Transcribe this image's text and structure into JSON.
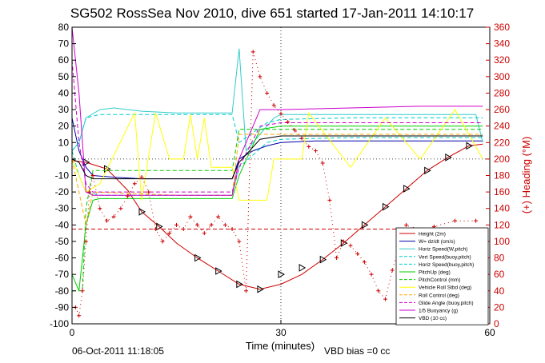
{
  "chart_data": {
    "type": "line",
    "title": "SG502 RossSea Nov 2010, dive 651 started 17-Jan-2011 14:10:17",
    "xlabel": "Time (minutes)",
    "ylabel_right": "(+) Heading (°M)",
    "xlim": [
      0,
      60
    ],
    "ylim": [
      -100,
      80
    ],
    "ylim_right": [
      0,
      360
    ],
    "x_ticks": [
      0,
      30,
      60
    ],
    "y_ticks": [
      -100,
      -90,
      -80,
      -70,
      -60,
      -50,
      -40,
      -30,
      -20,
      -10,
      0,
      10,
      20,
      30,
      40,
      50,
      60,
      70,
      80
    ],
    "y_ticks_right": [
      0,
      20,
      40,
      60,
      80,
      100,
      120,
      140,
      160,
      180,
      200,
      220,
      240,
      260,
      280,
      300,
      320,
      340,
      360
    ],
    "grid": "dotted at x=30 and y=0",
    "legend_position": "bottom-right",
    "footer_left": "06-Oct-2011 11:18:05",
    "footer_right": "VBD bias =0 cc",
    "colors": {
      "axis": "#000000",
      "right_axis": "#cc0000",
      "height": "#cc0000",
      "heading": "#cc0000",
      "w": "#0000aa",
      "horiz_w": "#33cccc",
      "vert_buoy": "#00cccc",
      "horiz_buoy": "#00cccc",
      "pitch": "#00cc00",
      "pitch_control": "#00cc00",
      "roll": "#ffff00",
      "roll_control": "#ffaa00",
      "glide": "#cc00cc",
      "buoyancy": "#cc00cc",
      "vbd": "#000000"
    },
    "series": [
      {
        "name": "Height (2m)",
        "color": "#cc0000",
        "style": "solid",
        "marker": "none",
        "x": [
          0,
          2,
          5,
          8,
          10,
          12.5,
          15,
          18,
          21,
          24,
          27,
          30,
          33,
          36,
          39,
          42,
          45,
          48,
          51,
          54,
          57,
          59
        ],
        "y": [
          -1,
          -2,
          -6,
          -19,
          -32,
          -41,
          -51,
          -60,
          -68,
          -76,
          -79,
          -76,
          -70,
          -61,
          -51,
          -40,
          -29,
          -18,
          -7,
          1,
          8,
          9
        ]
      },
      {
        "name": "",
        "color": "#000000",
        "style": "none",
        "marker": "triangle",
        "x": [
          2,
          5,
          10,
          12.5,
          18,
          21,
          24,
          27,
          30,
          33,
          36,
          39,
          42,
          45,
          48,
          51,
          54,
          57
        ],
        "y": [
          -2,
          -6,
          -32,
          -41,
          -60,
          -68,
          -76,
          -79,
          -70,
          -66,
          -61,
          -51,
          -40,
          -29,
          -18,
          -7,
          1,
          8
        ]
      },
      {
        "name": "W= dz/dt (cm/s)",
        "color": "#0000aa",
        "style": "solid",
        "marker": "none",
        "x": [
          0,
          1,
          2,
          3,
          6,
          10,
          15,
          20,
          23,
          24,
          26,
          28,
          30,
          35,
          40,
          45,
          50,
          55,
          57,
          58,
          59
        ],
        "y": [
          25,
          5,
          -5,
          -10,
          -11,
          -12,
          -12,
          -12,
          -12,
          0,
          5,
          8,
          10,
          11,
          11,
          11,
          11,
          11,
          11,
          11,
          11
        ]
      },
      {
        "name": "Horiz Speed(W,pitch)",
        "color": "#33cccc",
        "style": "solid",
        "marker": "none",
        "x": [
          0,
          1,
          2,
          4,
          6,
          10,
          15,
          20,
          23,
          24,
          25,
          27,
          29,
          30,
          35,
          40,
          45,
          50,
          55,
          58,
          59
        ],
        "y": [
          5,
          10,
          25,
          30,
          31,
          29,
          28,
          28,
          28,
          67,
          5,
          15,
          25,
          27,
          27,
          27,
          27,
          27,
          27,
          27,
          10
        ]
      },
      {
        "name": "Vert Speed(buoy,pitch)",
        "color": "#00cccc",
        "style": "dashed",
        "marker": "none",
        "x": [
          0,
          1,
          2,
          4,
          8,
          15,
          23,
          24,
          28,
          30,
          40,
          50,
          59
        ],
        "y": [
          5,
          -10,
          -20,
          -22,
          -22,
          -22,
          -22,
          -5,
          10,
          12,
          13,
          13,
          13
        ]
      },
      {
        "name": "Horiz Speed(buoy,pitch)",
        "color": "#00cccc",
        "style": "dashed",
        "marker": "none",
        "x": [
          0,
          1,
          2,
          4,
          8,
          15,
          23,
          24,
          28,
          30,
          40,
          50,
          59
        ],
        "y": [
          5,
          10,
          25,
          27,
          27,
          27,
          27,
          10,
          22,
          24,
          25,
          25,
          25
        ]
      },
      {
        "name": "PitchUp (deg)",
        "color": "#00cc00",
        "style": "solid",
        "marker": "none",
        "x": [
          0,
          1,
          2,
          3,
          4,
          8,
          15,
          23,
          24,
          27,
          30,
          40,
          50,
          59
        ],
        "y": [
          -70,
          -80,
          -40,
          -25,
          -24,
          -24,
          -24,
          -24,
          -10,
          18,
          20,
          20,
          20,
          20
        ]
      },
      {
        "name": "PitchControl (mm)",
        "color": "#00cc00",
        "style": "dashed",
        "marker": "none",
        "x": [
          0,
          1.5,
          2,
          3,
          15,
          23,
          24,
          26,
          30,
          40,
          50,
          59
        ],
        "y": [
          -80,
          -80,
          -30,
          -7,
          -7,
          -7,
          18,
          18,
          18,
          18,
          18,
          18
        ]
      },
      {
        "name": "Vehicle Roll Stbd (deg)",
        "color": "#ffff00",
        "style": "solid",
        "marker": "none",
        "x": [
          0,
          2,
          4,
          9,
          10,
          12,
          14,
          16,
          17,
          18,
          19,
          20,
          23,
          24,
          28,
          29,
          33,
          34,
          40,
          45,
          50,
          55,
          59
        ],
        "y": [
          0,
          -20,
          -15,
          28,
          -25,
          28,
          0,
          0,
          27,
          0,
          25,
          -5,
          -5,
          -25,
          -25,
          0,
          0,
          28,
          -5,
          25,
          0,
          30,
          0
        ]
      },
      {
        "name": "Roll Control (deg)",
        "color": "#ffaa00",
        "style": "dashed",
        "marker": "none",
        "x": [
          0,
          2,
          3,
          15,
          23,
          24,
          30,
          40,
          50,
          59
        ],
        "y": [
          0,
          -40,
          -20,
          -22,
          -22,
          15,
          15,
          15,
          15,
          15
        ]
      },
      {
        "name": "Glide Angle (buoy,pitch)",
        "color": "#cc00cc",
        "style": "dashed",
        "marker": "none",
        "x": [
          0,
          1,
          2,
          3,
          15,
          23,
          24,
          27,
          30,
          40,
          50,
          59
        ],
        "y": [
          60,
          10,
          -15,
          -20,
          -20,
          -20,
          -5,
          20,
          22,
          22,
          22,
          22
        ]
      },
      {
        "name": "1/5 Buoyancy (g)",
        "color": "#cc00cc",
        "style": "solid",
        "marker": "none",
        "x": [
          0,
          1,
          2,
          3,
          15,
          23,
          24,
          27,
          30,
          40,
          50,
          59
        ],
        "y": [
          80,
          40,
          -20,
          -22,
          -22,
          -22,
          0,
          30,
          30,
          31,
          32,
          32
        ]
      },
      {
        "name": "VBD (10 cc)",
        "color": "#000000",
        "style": "solid",
        "marker": "none",
        "x": [
          0,
          1,
          2,
          3,
          15,
          23,
          24,
          27,
          30,
          40,
          50,
          59
        ],
        "y": [
          0,
          -2,
          -10,
          -12,
          -12,
          -12,
          -2,
          12,
          14,
          14,
          14,
          14
        ]
      },
      {
        "name": "",
        "color": "#cc0000",
        "style": "dotted-plus",
        "marker": "plus",
        "axis": "right",
        "x": [
          0.5,
          1,
          1.5,
          2,
          2.5,
          3,
          4,
          5,
          6,
          7,
          8,
          9,
          10,
          11,
          12,
          13,
          14,
          15,
          16,
          17,
          18,
          19,
          20,
          21,
          22,
          23,
          24,
          25,
          26,
          27,
          28,
          29,
          30,
          31,
          32,
          33,
          34,
          35,
          36,
          37,
          38,
          39,
          40,
          41,
          42,
          43,
          44,
          45,
          46,
          47,
          48,
          49,
          50,
          52,
          55,
          58
        ],
        "y": [
          20,
          10,
          40,
          100,
          160,
          180,
          140,
          125,
          130,
          140,
          155,
          170,
          178,
          160,
          115,
          100,
          110,
          120,
          115,
          130,
          120,
          110,
          120,
          130,
          120,
          115,
          100,
          40,
          330,
          300,
          280,
          265,
          255,
          245,
          235,
          225,
          215,
          210,
          195,
          150,
          80,
          100,
          95,
          85,
          75,
          60,
          40,
          30,
          65,
          95,
          120,
          115,
          110,
          118,
          125,
          125
        ]
      },
      {
        "name": "",
        "color": "#cc0000",
        "style": "dashed",
        "marker": "none",
        "axis": "right",
        "x": [
          0,
          59
        ],
        "y": [
          115,
          115
        ]
      }
    ]
  }
}
